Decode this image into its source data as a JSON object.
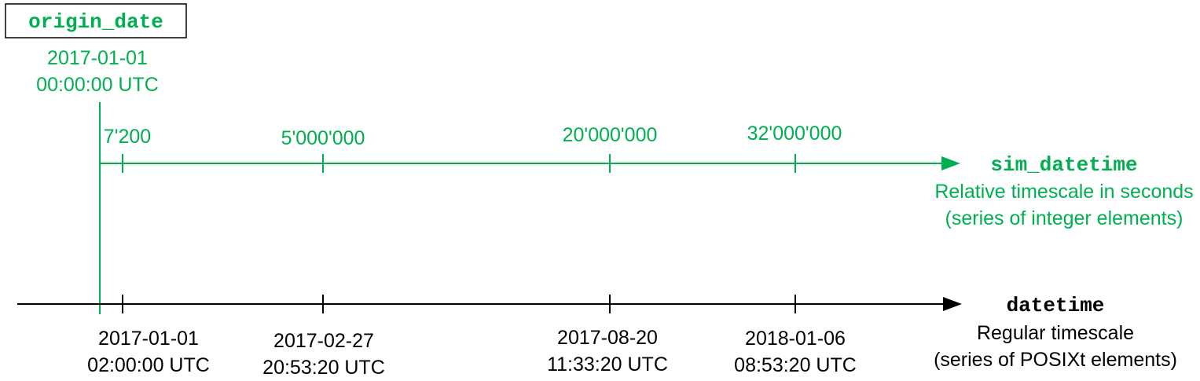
{
  "origin": {
    "label": "origin_date",
    "date": "2017-01-01",
    "time": "00:00:00 UTC"
  },
  "sim_axis": {
    "name": "sim_datetime",
    "desc_line1": "Relative timescale in seconds",
    "desc_line2": "(series of integer elements)",
    "tick_labels": [
      "7'200",
      "5'000'000",
      "20'000'000",
      "32'000'000"
    ]
  },
  "datetime_axis": {
    "name": "datetime",
    "desc_line1": "Regular timescale",
    "desc_line2": "(series of POSIXt elements)",
    "ticks": [
      {
        "date": "2017-01-01",
        "time": "02:00:00 UTC"
      },
      {
        "date": "2017-02-27",
        "time": "20:53:20 UTC"
      },
      {
        "date": "2017-08-20",
        "time": "11:33:20 UTC"
      },
      {
        "date": "2018-01-06",
        "time": "08:53:20 UTC"
      }
    ]
  },
  "colors": {
    "green": "#00b050",
    "black": "#000000"
  }
}
